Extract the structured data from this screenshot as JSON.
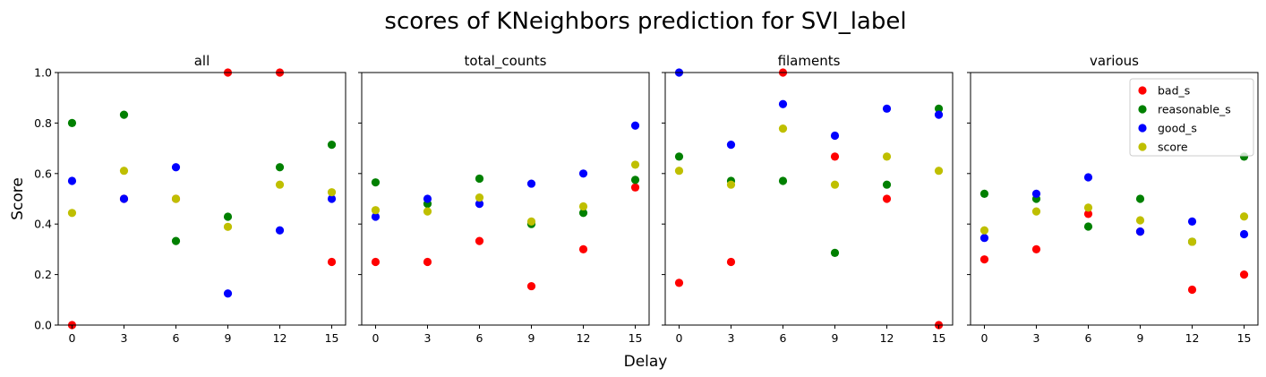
{
  "figure": {
    "suptitle": "scores of KNeighbors prediction for SVI_label",
    "xlabel": "Delay",
    "ylabel": "Score"
  },
  "chart_data": {
    "type": "scatter",
    "x_ticks": [
      0,
      3,
      6,
      9,
      12,
      15
    ],
    "y_ticks": [
      "0.0",
      "0.2",
      "0.4",
      "0.6",
      "0.8",
      "1.0"
    ],
    "xlim": [
      -0.8,
      15.8
    ],
    "ylim": [
      0,
      1
    ],
    "legend": {
      "panel": 3,
      "placement": "top-right"
    },
    "series_meta": [
      {
        "key": "bad_s",
        "name": "bad_s",
        "color": "#ff0000"
      },
      {
        "key": "reasonable_s",
        "name": "reasonable_s",
        "color": "#008000"
      },
      {
        "key": "good_s",
        "name": "good_s",
        "color": "#0000ff"
      },
      {
        "key": "score",
        "name": "score",
        "color": "#bfbf00"
      }
    ],
    "panels": [
      {
        "title": "all",
        "x": [
          0,
          3,
          6,
          9,
          12,
          15
        ],
        "series": {
          "bad_s": [
            0.0,
            0.5,
            0.5,
            1.0,
            1.0,
            0.25
          ],
          "reasonable_s": [
            0.8,
            0.833,
            0.333,
            0.429,
            0.625,
            0.714
          ],
          "good_s": [
            0.571,
            0.5,
            0.625,
            0.125,
            0.375,
            0.5
          ],
          "score": [
            0.444,
            0.611,
            0.5,
            0.389,
            0.556,
            0.526
          ]
        }
      },
      {
        "title": "total_counts",
        "x": [
          0,
          3,
          6,
          9,
          12,
          15
        ],
        "series": {
          "bad_s": [
            0.25,
            0.25,
            0.333,
            0.154,
            0.3,
            0.545
          ],
          "reasonable_s": [
            0.565,
            0.48,
            0.58,
            0.4,
            0.444,
            0.575
          ],
          "good_s": [
            0.429,
            0.5,
            0.48,
            0.56,
            0.6,
            0.79
          ],
          "score": [
            0.455,
            0.45,
            0.505,
            0.41,
            0.47,
            0.635
          ]
        }
      },
      {
        "title": "filaments",
        "x": [
          0,
          3,
          6,
          9,
          12,
          15
        ],
        "series": {
          "bad_s": [
            0.167,
            0.25,
            1.0,
            0.667,
            0.5,
            0.0
          ],
          "reasonable_s": [
            0.667,
            0.571,
            0.571,
            0.286,
            0.556,
            0.857
          ],
          "good_s": [
            1.0,
            0.714,
            0.875,
            0.75,
            0.857,
            0.833
          ],
          "score": [
            0.611,
            0.556,
            0.778,
            0.556,
            0.667,
            0.611
          ]
        }
      },
      {
        "title": "various",
        "x": [
          0,
          3,
          6,
          9,
          12,
          15
        ],
        "series": {
          "bad_s": [
            0.26,
            0.3,
            0.44,
            0.37,
            0.14,
            0.2
          ],
          "reasonable_s": [
            0.52,
            0.5,
            0.39,
            0.5,
            0.33,
            0.667
          ],
          "good_s": [
            0.345,
            0.52,
            0.585,
            0.37,
            0.41,
            0.36
          ],
          "score": [
            0.375,
            0.45,
            0.465,
            0.415,
            0.33,
            0.43
          ]
        }
      }
    ]
  }
}
